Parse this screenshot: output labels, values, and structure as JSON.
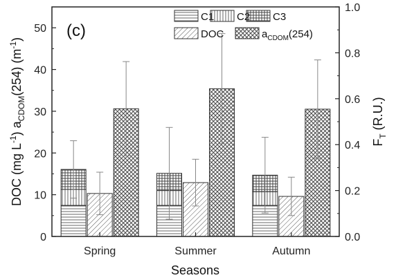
{
  "chart_data": {
    "type": "bar",
    "panel_label": "(c)",
    "categories": [
      "Spring",
      "Summer",
      "Autumn"
    ],
    "xlabel": "Seasons",
    "ylabel_left": {
      "main": "DOC  (mg L",
      "sup1": "-1",
      "sep": ")      a",
      "sub": "CDOM",
      "tail": "(254) (m",
      "sup2": "-1",
      "end": ")"
    },
    "ylabel_right": {
      "main": "F",
      "sub": "T",
      "tail": " (R.U.)"
    },
    "ylim_left": [
      0,
      55
    ],
    "yticks_left": [
      0,
      10,
      20,
      30,
      40,
      50
    ],
    "ylim_right": [
      0,
      1.0
    ],
    "yticks_right": [
      "0.0",
      "0.2",
      "0.4",
      "0.6",
      "0.8",
      "1.0"
    ],
    "series": [
      {
        "name": "C1",
        "axis": "right",
        "stack": "FT",
        "values": [
          0.135,
          0.135,
          0.135
        ]
      },
      {
        "name": "C2",
        "axis": "right",
        "stack": "FT",
        "values": [
          0.07,
          0.065,
          0.06
        ]
      },
      {
        "name": "C3",
        "axis": "right",
        "stack": "FT",
        "values": [
          0.087,
          0.075,
          0.072
        ]
      },
      {
        "name": "DOC",
        "axis": "left",
        "values": [
          10.3,
          12.9,
          9.6
        ],
        "error": [
          5.1,
          5.6,
          4.6
        ]
      },
      {
        "name": "a_CDOM(254)",
        "axis": "left",
        "values": [
          30.6,
          35.4,
          30.5
        ],
        "error": [
          11.3,
          13.2,
          11.8
        ]
      }
    ],
    "ft_total_error": [
      0.125,
      0.2,
      0.165
    ],
    "legend": {
      "placement": "top-center",
      "items": [
        {
          "label": "C1",
          "pattern": "hlines"
        },
        {
          "label": "C2",
          "pattern": "vlines"
        },
        {
          "label": "C3",
          "pattern": "grid"
        },
        {
          "label": "DOC",
          "pattern": "diag"
        },
        {
          "label_main": "a",
          "label_sub": "CDOM",
          "label_tail": "(254)",
          "pattern": "crosshatch"
        }
      ]
    },
    "grid": false,
    "colors": {
      "stroke": "#333333",
      "pattern": "#555555",
      "error": "#888888"
    }
  }
}
